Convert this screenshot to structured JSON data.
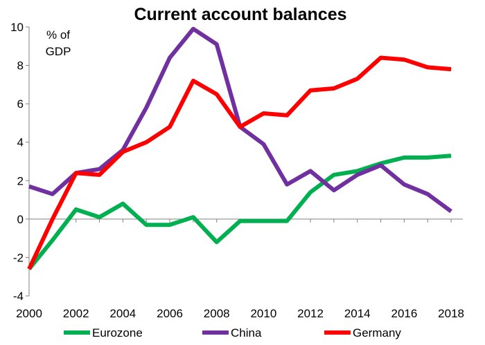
{
  "chart_data": {
    "type": "line",
    "title": "Current account balances",
    "unit_label": [
      "% of",
      "GDP"
    ],
    "xlabel": "",
    "ylabel": "",
    "x": [
      2000,
      2001,
      2002,
      2003,
      2004,
      2005,
      2006,
      2007,
      2008,
      2009,
      2010,
      2011,
      2012,
      2013,
      2014,
      2015,
      2016,
      2017,
      2018
    ],
    "x_ticks": [
      "2000",
      "2002",
      "2004",
      "2006",
      "2008",
      "2010",
      "2012",
      "2014",
      "2016",
      "2018"
    ],
    "y_ticks": [
      "10",
      "8",
      "6",
      "4",
      "2",
      "0",
      "-2",
      "-4"
    ],
    "ylim": [
      -4,
      10
    ],
    "grid": false,
    "legend_position": "bottom",
    "series": [
      {
        "name": "Eurozone",
        "color": "#00b050",
        "values": [
          -2.6,
          -1.1,
          0.5,
          0.1,
          0.8,
          -0.3,
          -0.3,
          0.1,
          -1.2,
          -0.1,
          -0.1,
          -0.1,
          1.4,
          2.3,
          2.5,
          2.9,
          3.2,
          3.2,
          3.3
        ]
      },
      {
        "name": "China",
        "color": "#7030a0",
        "values": [
          1.7,
          1.3,
          2.4,
          2.6,
          3.6,
          5.8,
          8.4,
          9.9,
          9.1,
          4.8,
          3.9,
          1.8,
          2.5,
          1.5,
          2.3,
          2.8,
          1.8,
          1.3,
          0.4
        ]
      },
      {
        "name": "Germany",
        "color": "#ff0000",
        "values": [
          -2.6,
          0.0,
          2.4,
          2.3,
          3.5,
          4.0,
          4.8,
          7.2,
          6.5,
          4.8,
          5.5,
          5.4,
          6.7,
          6.8,
          7.3,
          8.4,
          8.3,
          7.9,
          7.8
        ]
      }
    ]
  }
}
